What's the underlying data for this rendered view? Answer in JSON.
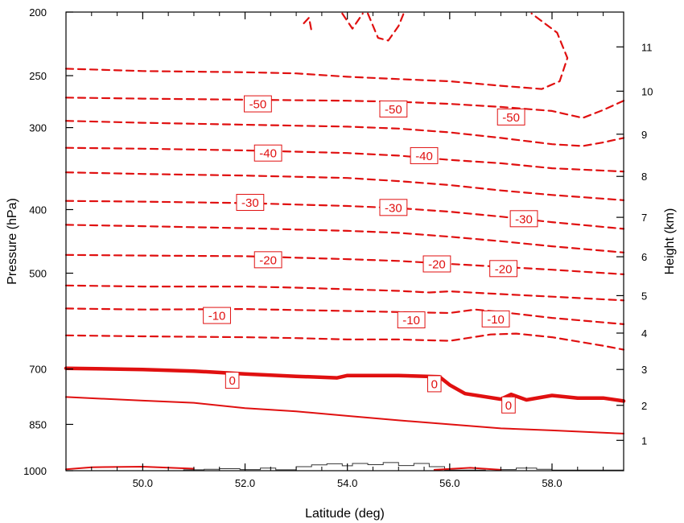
{
  "chart_data": {
    "type": "line",
    "title": "",
    "xlabel": "Latitude (deg)",
    "ylabel": "Pressure (hPa)",
    "y2label": "Height (km)",
    "xlim": [
      48.5,
      59.4
    ],
    "ylim": [
      1000,
      200
    ],
    "y_scale": "log",
    "grid": false,
    "x_ticks": [
      {
        "value": 50.0,
        "label": "50.0"
      },
      {
        "value": 52.0,
        "label": "52.0"
      },
      {
        "value": 54.0,
        "label": "54.0"
      },
      {
        "value": 56.0,
        "label": "56.0"
      },
      {
        "value": 58.0,
        "label": "58.0"
      }
    ],
    "y_ticks": [
      {
        "value": 200,
        "label": "200"
      },
      {
        "value": 250,
        "label": "250"
      },
      {
        "value": 300,
        "label": "300"
      },
      {
        "value": 400,
        "label": "400"
      },
      {
        "value": 500,
        "label": "500"
      },
      {
        "value": 700,
        "label": "700"
      },
      {
        "value": 850,
        "label": "850"
      },
      {
        "value": 1000,
        "label": "1000"
      }
    ],
    "y2_ticks": [
      {
        "pressure": 899,
        "label": "1"
      },
      {
        "pressure": 795,
        "label": "2"
      },
      {
        "pressure": 701,
        "label": "3"
      },
      {
        "pressure": 617,
        "label": "4"
      },
      {
        "pressure": 541,
        "label": "5"
      },
      {
        "pressure": 472,
        "label": "6"
      },
      {
        "pressure": 411,
        "label": "7"
      },
      {
        "pressure": 356,
        "label": "8"
      },
      {
        "pressure": 307,
        "label": "9"
      },
      {
        "pressure": 264,
        "label": "10"
      },
      {
        "pressure": 226,
        "label": "11"
      }
    ],
    "contours": [
      {
        "level": -55,
        "style": "dashed",
        "points": [
          [
            48.5,
            244
          ],
          [
            50,
            246
          ],
          [
            52,
            247
          ],
          [
            53,
            248
          ],
          [
            54,
            251
          ],
          [
            55,
            253
          ],
          [
            56,
            255
          ],
          [
            57,
            259
          ],
          [
            57.8,
            262
          ],
          [
            58.15,
            255
          ],
          [
            58.3,
            235
          ],
          [
            58.1,
            215
          ],
          [
            57.6,
            201
          ]
        ]
      },
      {
        "level": -50,
        "style": "dashed",
        "points": [
          [
            48.5,
            270
          ],
          [
            50,
            271
          ],
          [
            52,
            272
          ],
          [
            54,
            273
          ],
          [
            55,
            274
          ],
          [
            56,
            276
          ],
          [
            57,
            279
          ],
          [
            58,
            283
          ],
          [
            58.6,
            290
          ],
          [
            59.0,
            282
          ],
          [
            59.4,
            273
          ]
        ]
      },
      {
        "level": -45,
        "style": "dashed",
        "points": [
          [
            48.5,
            293
          ],
          [
            50,
            295
          ],
          [
            52,
            297
          ],
          [
            54,
            299
          ],
          [
            55,
            301
          ],
          [
            56,
            305
          ],
          [
            57,
            311
          ],
          [
            58,
            318
          ],
          [
            58.6,
            320
          ],
          [
            59.0,
            316
          ],
          [
            59.4,
            311
          ]
        ]
      },
      {
        "level": -40,
        "style": "dashed",
        "points": [
          [
            48.5,
            322
          ],
          [
            50,
            323
          ],
          [
            52,
            325
          ],
          [
            54,
            328
          ],
          [
            55,
            331
          ],
          [
            56,
            336
          ],
          [
            57,
            340
          ],
          [
            58,
            346
          ],
          [
            59.4,
            350
          ]
        ]
      },
      {
        "level": -35,
        "style": "dashed",
        "points": [
          [
            48.5,
            351
          ],
          [
            50,
            353
          ],
          [
            52,
            355
          ],
          [
            54,
            358
          ],
          [
            55,
            362
          ],
          [
            56,
            367
          ],
          [
            57,
            374
          ],
          [
            58,
            380
          ],
          [
            59.4,
            387
          ]
        ]
      },
      {
        "level": -30,
        "style": "dashed",
        "points": [
          [
            48.5,
            388
          ],
          [
            50,
            389
          ],
          [
            52,
            391
          ],
          [
            54,
            395
          ],
          [
            55,
            398
          ],
          [
            56,
            403
          ],
          [
            57,
            410
          ],
          [
            58,
            418
          ],
          [
            59.4,
            428
          ]
        ]
      },
      {
        "level": -25,
        "style": "dashed",
        "points": [
          [
            48.5,
            422
          ],
          [
            50,
            424
          ],
          [
            52,
            427
          ],
          [
            54,
            431
          ],
          [
            55,
            434
          ],
          [
            56,
            440
          ],
          [
            57,
            447
          ],
          [
            58,
            455
          ],
          [
            59.4,
            465
          ]
        ]
      },
      {
        "level": -20,
        "style": "dashed",
        "points": [
          [
            48.5,
            469
          ],
          [
            50,
            470
          ],
          [
            52,
            471
          ],
          [
            54,
            476
          ],
          [
            55,
            479
          ],
          [
            56,
            484
          ],
          [
            57,
            489
          ],
          [
            58,
            494
          ],
          [
            59.4,
            502
          ]
        ]
      },
      {
        "level": -15,
        "style": "dashed",
        "points": [
          [
            48.5,
            522
          ],
          [
            50,
            524
          ],
          [
            52,
            524
          ],
          [
            53,
            526
          ],
          [
            54,
            529
          ],
          [
            55,
            532
          ],
          [
            55.6,
            535
          ],
          [
            56,
            533
          ],
          [
            57,
            538
          ],
          [
            58,
            543
          ],
          [
            59.4,
            550
          ]
        ]
      },
      {
        "level": -10,
        "style": "dashed",
        "points": [
          [
            48.5,
            566
          ],
          [
            50,
            568
          ],
          [
            52,
            567
          ],
          [
            53,
            569
          ],
          [
            54,
            571
          ],
          [
            55,
            573
          ],
          [
            56,
            575
          ],
          [
            56.5,
            568
          ],
          [
            57,
            573
          ],
          [
            58,
            585
          ],
          [
            59.4,
            598
          ]
        ]
      },
      {
        "level": -5,
        "style": "dashed",
        "points": [
          [
            48.5,
            622
          ],
          [
            50,
            624
          ],
          [
            52,
            626
          ],
          [
            53,
            628
          ],
          [
            54,
            631
          ],
          [
            55,
            631
          ],
          [
            56,
            634
          ],
          [
            56.8,
            620
          ],
          [
            57.3,
            618
          ],
          [
            58,
            626
          ],
          [
            59,
            645
          ],
          [
            59.4,
            654
          ]
        ]
      },
      {
        "level": 0,
        "style": "thick",
        "points": [
          [
            48.5,
            698
          ],
          [
            50,
            701
          ],
          [
            51,
            705
          ],
          [
            52,
            712
          ],
          [
            53,
            718
          ],
          [
            53.8,
            722
          ],
          [
            54,
            716
          ],
          [
            55,
            716
          ],
          [
            55.8,
            719
          ],
          [
            56,
            740
          ],
          [
            56.3,
            763
          ],
          [
            57,
            778
          ],
          [
            57.2,
            765
          ],
          [
            57.5,
            780
          ],
          [
            58,
            768
          ],
          [
            58.5,
            775
          ],
          [
            59,
            775
          ],
          [
            59.4,
            783
          ]
        ]
      },
      {
        "level": 5,
        "style": "solid",
        "points": [
          [
            48.5,
            772
          ],
          [
            50,
            782
          ],
          [
            51,
            788
          ],
          [
            52,
            803
          ],
          [
            53,
            812
          ],
          [
            54,
            825
          ],
          [
            55,
            838
          ],
          [
            56,
            850
          ],
          [
            57,
            862
          ],
          [
            58,
            868
          ],
          [
            59.4,
            878
          ]
        ]
      },
      {
        "level": 10,
        "style": "solid",
        "points": [
          [
            48.5,
            995
          ],
          [
            49,
            988
          ],
          [
            50,
            986
          ],
          [
            51,
            993
          ]
        ]
      },
      {
        "level": 10,
        "style": "solid",
        "points": [
          [
            55.7,
            997
          ],
          [
            56.4,
            990
          ],
          [
            57,
            997
          ]
        ]
      },
      {
        "level": -60,
        "style": "dashed",
        "points": [
          [
            53.15,
            208
          ],
          [
            53.25,
            204
          ],
          [
            53.3,
            214
          ]
        ]
      },
      {
        "level": -60,
        "style": "dashed",
        "points": [
          [
            53.9,
            201
          ],
          [
            54.1,
            212
          ],
          [
            54.3,
            201
          ]
        ]
      },
      {
        "level": -60,
        "style": "dashed",
        "points": [
          [
            54.4,
            201
          ],
          [
            54.6,
            219
          ],
          [
            54.8,
            221
          ],
          [
            55.0,
            210
          ],
          [
            55.1,
            201
          ]
        ]
      }
    ],
    "contour_labels": [
      {
        "text": "-50",
        "x": 52.25,
        "y": 276
      },
      {
        "text": "-50",
        "x": 54.9,
        "y": 281
      },
      {
        "text": "-50",
        "x": 57.2,
        "y": 289
      },
      {
        "text": "-40",
        "x": 52.45,
        "y": 328
      },
      {
        "text": "-40",
        "x": 55.5,
        "y": 331
      },
      {
        "text": "-30",
        "x": 52.1,
        "y": 390
      },
      {
        "text": "-30",
        "x": 54.9,
        "y": 397
      },
      {
        "text": "-30",
        "x": 57.45,
        "y": 413
      },
      {
        "text": "-20",
        "x": 52.45,
        "y": 477
      },
      {
        "text": "-20",
        "x": 55.75,
        "y": 484
      },
      {
        "text": "-20",
        "x": 57.05,
        "y": 492
      },
      {
        "text": "-10",
        "x": 51.45,
        "y": 580
      },
      {
        "text": "-10",
        "x": 55.25,
        "y": 589
      },
      {
        "text": "-10",
        "x": 56.9,
        "y": 587
      },
      {
        "text": "0",
        "x": 51.75,
        "y": 728
      },
      {
        "text": "0",
        "x": 55.7,
        "y": 737
      },
      {
        "text": "0",
        "x": 57.15,
        "y": 794
      }
    ],
    "terrain": {
      "style": "step",
      "points": [
        [
          48.5,
          1000
        ],
        [
          50.6,
          1000
        ],
        [
          50.8,
          997
        ],
        [
          51.2,
          995
        ],
        [
          51.5,
          993
        ],
        [
          51.9,
          996
        ],
        [
          52.3,
          991
        ],
        [
          52.6,
          997
        ],
        [
          53.0,
          986
        ],
        [
          53.3,
          980
        ],
        [
          53.6,
          976
        ],
        [
          53.9,
          983
        ],
        [
          54.1,
          975
        ],
        [
          54.4,
          979
        ],
        [
          54.7,
          972
        ],
        [
          55.0,
          982
        ],
        [
          55.3,
          975
        ],
        [
          55.6,
          986
        ],
        [
          55.9,
          998
        ],
        [
          56.7,
          1000
        ],
        [
          57.0,
          996
        ],
        [
          57.3,
          991
        ],
        [
          57.7,
          995
        ],
        [
          58.0,
          998
        ],
        [
          58.3,
          998
        ],
        [
          59.4,
          998
        ]
      ]
    }
  }
}
